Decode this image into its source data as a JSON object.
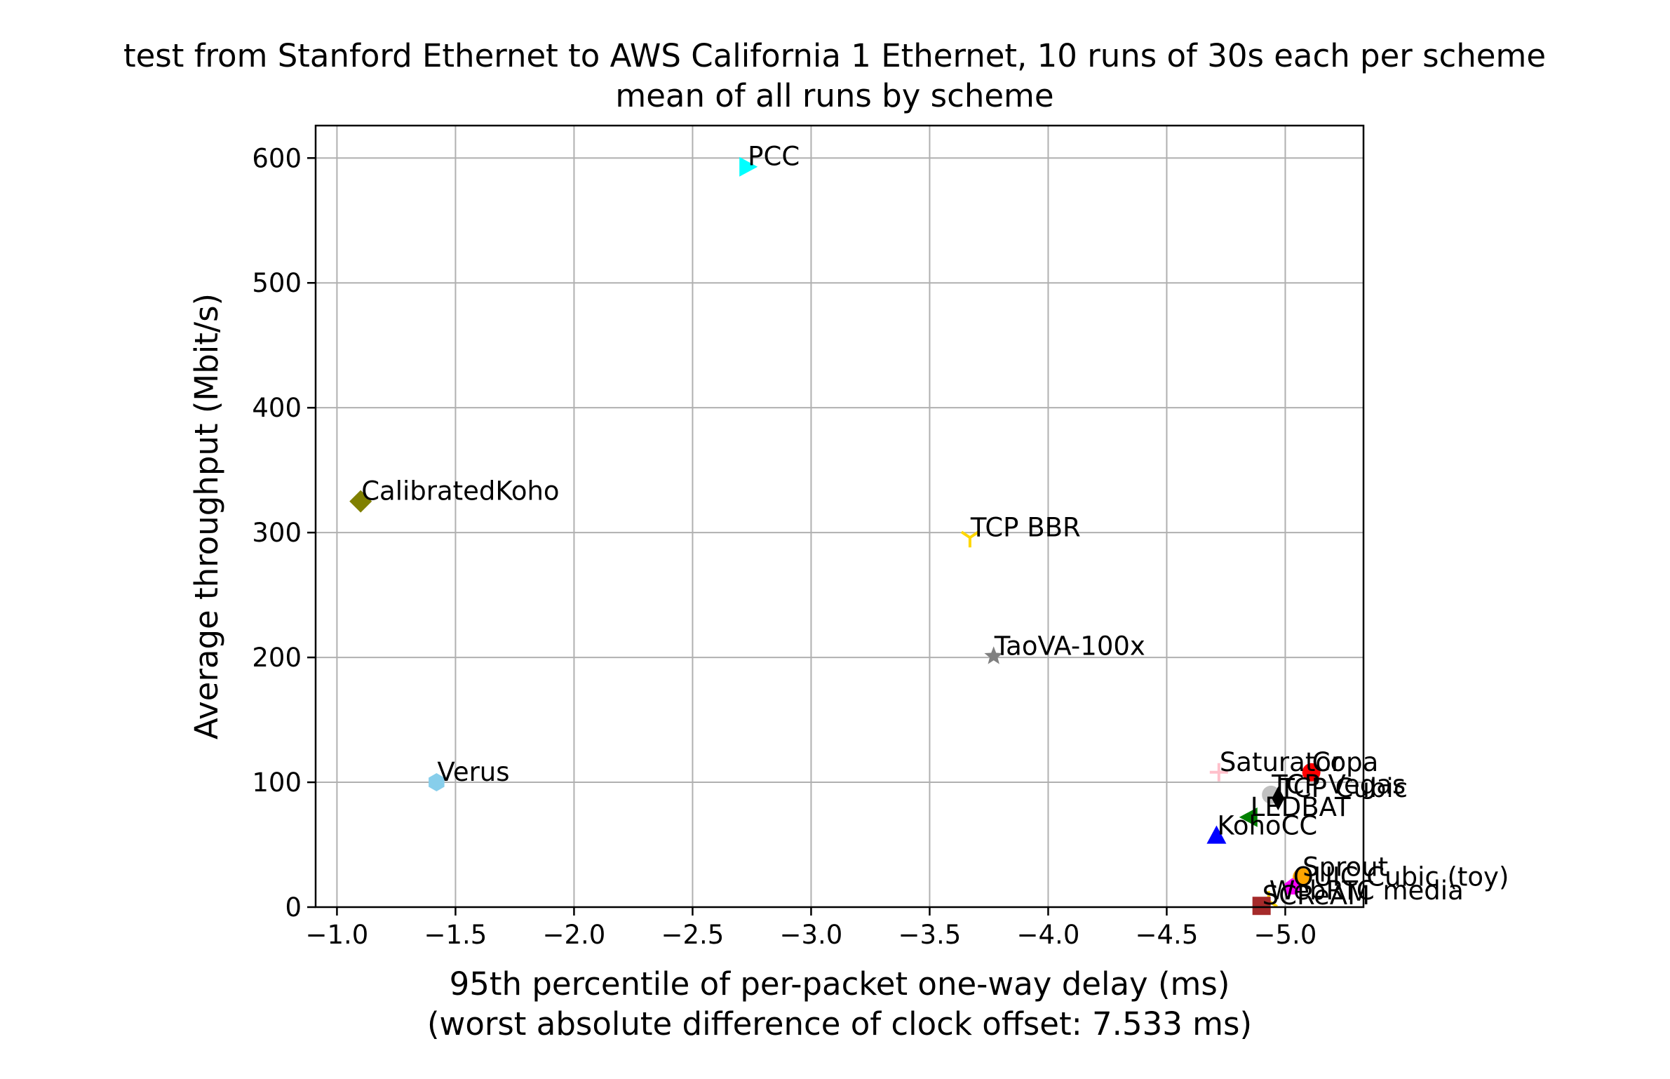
{
  "chart_data": {
    "type": "scatter",
    "title": "test from Stanford Ethernet to AWS California 1 Ethernet, 10 runs of 30s each per scheme",
    "subtitle": "mean of all runs by scheme",
    "xlabel": "95th percentile of per-packet one-way delay (ms)",
    "xlabel2": "(worst absolute difference of clock offset: 7.533 ms)",
    "ylabel": "Average throughput (Mbit/s)",
    "xlim": [
      -0.91,
      -5.33
    ],
    "ylim": [
      0,
      626
    ],
    "grid": true,
    "x_ticks": [
      -1.0,
      -1.5,
      -2.0,
      -2.5,
      -3.0,
      -3.5,
      -4.0,
      -4.5,
      -5.0
    ],
    "x_tick_labels": [
      "−1.0",
      "−1.5",
      "−2.0",
      "−2.5",
      "−3.0",
      "−3.5",
      "−4.0",
      "−4.5",
      "−5.0"
    ],
    "y_ticks": [
      0,
      100,
      200,
      300,
      400,
      500,
      600
    ],
    "y_tick_labels": [
      "0",
      "100",
      "200",
      "300",
      "400",
      "500",
      "600"
    ],
    "series": [
      {
        "name": "PCC",
        "x": -2.73,
        "y": 593,
        "color": "#00ffff",
        "marker": "triangle-right"
      },
      {
        "name": "CalibratedKoho",
        "x": -1.1,
        "y": 325,
        "color": "#808000",
        "marker": "diamond"
      },
      {
        "name": "TCP BBR",
        "x": -3.67,
        "y": 296,
        "color": "#ffd700",
        "marker": "tri-down"
      },
      {
        "name": "TaoVA-100x",
        "x": -3.77,
        "y": 201,
        "color": "#808080",
        "marker": "star"
      },
      {
        "name": "Verus",
        "x": -1.42,
        "y": 100,
        "color": "#87ceeb",
        "marker": "hexagon"
      },
      {
        "name": "Saturator",
        "x": -4.72,
        "y": 108,
        "color": "#ffc0cb",
        "marker": "plus"
      },
      {
        "name": "Copa",
        "x": -5.11,
        "y": 108,
        "color": "#ff0000",
        "marker": "circle"
      },
      {
        "name": "TCP Vegas",
        "x": -4.94,
        "y": 90,
        "color": "#c0c0c0",
        "marker": "circle"
      },
      {
        "name": "TCP Cubic",
        "x": -4.97,
        "y": 87,
        "color": "#000000",
        "marker": "thin-diamond"
      },
      {
        "name": "LEDBAT",
        "x": -4.85,
        "y": 72,
        "color": "#008000",
        "marker": "triangle-left"
      },
      {
        "name": "KohoCC",
        "x": -4.71,
        "y": 57,
        "color": "#0000ff",
        "marker": "triangle-up"
      },
      {
        "name": "Sprout",
        "x": -5.07,
        "y": 24,
        "color": "#ffa500",
        "marker": "circle"
      },
      {
        "name": "QUIC Cubic (toy)",
        "x": -5.03,
        "y": 16,
        "color": "#ff00ff",
        "marker": "pentagon"
      },
      {
        "name": "WebRTC media",
        "x": -4.93,
        "y": 5,
        "color": "#ffd700",
        "marker": "tri-up"
      },
      {
        "name": "SCReAM",
        "x": -4.9,
        "y": 1,
        "color": "#a52a2a",
        "marker": "square"
      }
    ]
  }
}
